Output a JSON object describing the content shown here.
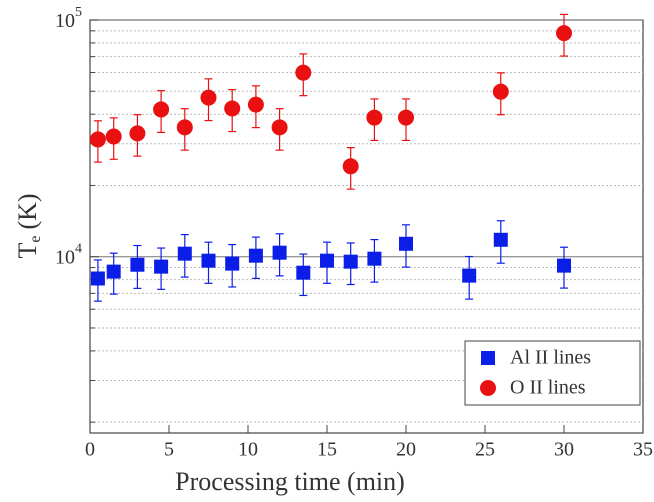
{
  "chart_data": {
    "type": "scatter",
    "xlabel": "Processing time (min)",
    "ylabel": {
      "text": "T",
      "subscript": "e",
      "unit": "(K)"
    },
    "xlim": [
      0,
      35
    ],
    "xticks": [
      0,
      5,
      10,
      15,
      20,
      25,
      30,
      35
    ],
    "ylim": [
      1800,
      100000
    ],
    "log_y": true,
    "yticks": [
      {
        "value": 10000,
        "label": "10",
        "exponent": "4"
      },
      {
        "value": 100000,
        "label": "10",
        "exponent": "5"
      }
    ],
    "yminorticks": [
      2000,
      3000,
      4000,
      5000,
      6000,
      7000,
      8000,
      9000,
      20000,
      30000,
      40000,
      50000,
      60000,
      70000,
      80000,
      90000
    ],
    "legend": "lower right",
    "series": [
      {
        "name": "Al II lines",
        "color": "#0a1ee8",
        "marker": "square",
        "x": [
          0.5,
          1.5,
          3,
          4.5,
          6,
          7.5,
          9,
          10.5,
          12,
          13.5,
          15,
          16.5,
          18,
          20,
          24,
          26,
          30
        ],
        "values": [
          8090,
          8650,
          9250,
          9080,
          10300,
          9620,
          9350,
          10100,
          10400,
          8560,
          9620,
          9530,
          9810,
          11340,
          8320,
          11790,
          9170
        ],
        "errors": [
          1600,
          1700,
          1900,
          1800,
          2100,
          1900,
          1900,
          2000,
          2100,
          1700,
          1900,
          1900,
          2000,
          2300,
          1700,
          2400,
          1800
        ]
      },
      {
        "name": "O II lines",
        "color": "#e81010",
        "marker": "circle",
        "x": [
          0.5,
          1.5,
          3,
          4.5,
          6,
          7.5,
          9,
          10.5,
          12,
          13.5,
          16.5,
          18,
          20,
          26,
          30
        ],
        "values": [
          31300,
          32200,
          33200,
          41900,
          35200,
          47000,
          42300,
          43900,
          35200,
          59900,
          24100,
          38700,
          38700,
          49800,
          88000
        ],
        "errors": [
          6200,
          6400,
          6600,
          8400,
          7000,
          9400,
          8500,
          8800,
          7000,
          12000,
          4800,
          7700,
          7700,
          10000,
          17600
        ]
      }
    ]
  }
}
